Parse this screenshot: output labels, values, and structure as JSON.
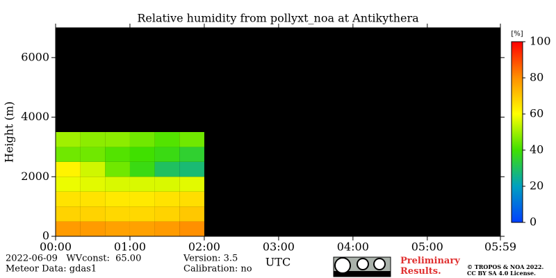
{
  "chart_data": {
    "type": "heatmap",
    "title": "Relative humidity from pollyxt_noa at Antikythera",
    "ylabel": "Height (m)",
    "xlabel": "UTC",
    "xlim": [
      0,
      359
    ],
    "xticks": [
      {
        "value": 0,
        "label": "00:00"
      },
      {
        "value": 60,
        "label": "01:00"
      },
      {
        "value": 120,
        "label": "02:00"
      },
      {
        "value": 180,
        "label": "03:00"
      },
      {
        "value": 240,
        "label": "04:00"
      },
      {
        "value": 300,
        "label": "05:00"
      },
      {
        "value": 359,
        "label": "05:59"
      }
    ],
    "ylim": [
      0,
      7000
    ],
    "yticks": [
      0,
      2000,
      4000,
      6000
    ],
    "x_edges": [
      0,
      20,
      40,
      60,
      80,
      100,
      120
    ],
    "y_edges": [
      0,
      500,
      1000,
      1500,
      2000,
      2500,
      3000,
      3500
    ],
    "z": [
      [
        78,
        78,
        77,
        77,
        78,
        80
      ],
      [
        68,
        68,
        67,
        67,
        68,
        70
      ],
      [
        65,
        65,
        64,
        64,
        65,
        66
      ],
      [
        58,
        57,
        56,
        56,
        56,
        57
      ],
      [
        62,
        55,
        45,
        38,
        30,
        28
      ],
      [
        45,
        45,
        42,
        40,
        38,
        35
      ],
      [
        50,
        48,
        48,
        45,
        42,
        45
      ]
    ],
    "colormap": [
      "#0040ff",
      "#00a0c0",
      "#40e000",
      "#ffff00",
      "#ff9000",
      "#ff0000"
    ],
    "colorbar": {
      "label": "[%]",
      "lim": [
        0,
        100
      ],
      "ticks": [
        0,
        20,
        40,
        60,
        80,
        100
      ]
    },
    "footer": {
      "date": "2022-06-09   WVconst:  65.00",
      "meteor": "Meteor Data: gdas1",
      "version": "Version: 3.5",
      "calibration": "Calibration: no",
      "preliminary": "Preliminary Results.",
      "copyright": "© TROPOS & NOA 2022.",
      "license": "CC BY SA 4.0 License."
    }
  }
}
